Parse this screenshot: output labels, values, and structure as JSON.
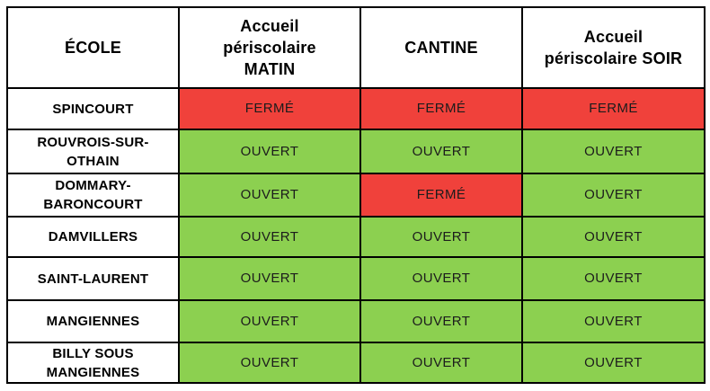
{
  "table": {
    "columns": [
      {
        "label": "ÉCOLE"
      },
      {
        "label": "Accueil périscolaire MATIN"
      },
      {
        "label": "CANTINE"
      },
      {
        "label": "Accueil périscolaire SOIR"
      }
    ],
    "rows": [
      {
        "school": "SPINCOURT",
        "matin": "FERMÉ",
        "cantine": "FERMÉ",
        "soir": "FERMÉ"
      },
      {
        "school": "ROUVROIS-SUR-OTHAIN",
        "matin": "OUVERT",
        "cantine": "OUVERT",
        "soir": "OUVERT"
      },
      {
        "school": "DOMMARY-BARONCOURT",
        "matin": "OUVERT",
        "cantine": "FERMÉ",
        "soir": "OUVERT"
      },
      {
        "school": "DAMVILLERS",
        "matin": "OUVERT",
        "cantine": "OUVERT",
        "soir": "OUVERT"
      },
      {
        "school": "SAINT-LAURENT",
        "matin": "OUVERT",
        "cantine": "OUVERT",
        "soir": "OUVERT"
      },
      {
        "school": "MANGIENNES",
        "matin": "OUVERT",
        "cantine": "OUVERT",
        "soir": "OUVERT"
      },
      {
        "school": "BILLY SOUS MANGIENNES",
        "matin": "OUVERT",
        "cantine": "OUVERT",
        "soir": "OUVERT"
      }
    ],
    "status_colors": {
      "OUVERT": "#8CD050",
      "FERMÉ": "#F0413B"
    },
    "border_color": "#000000"
  }
}
